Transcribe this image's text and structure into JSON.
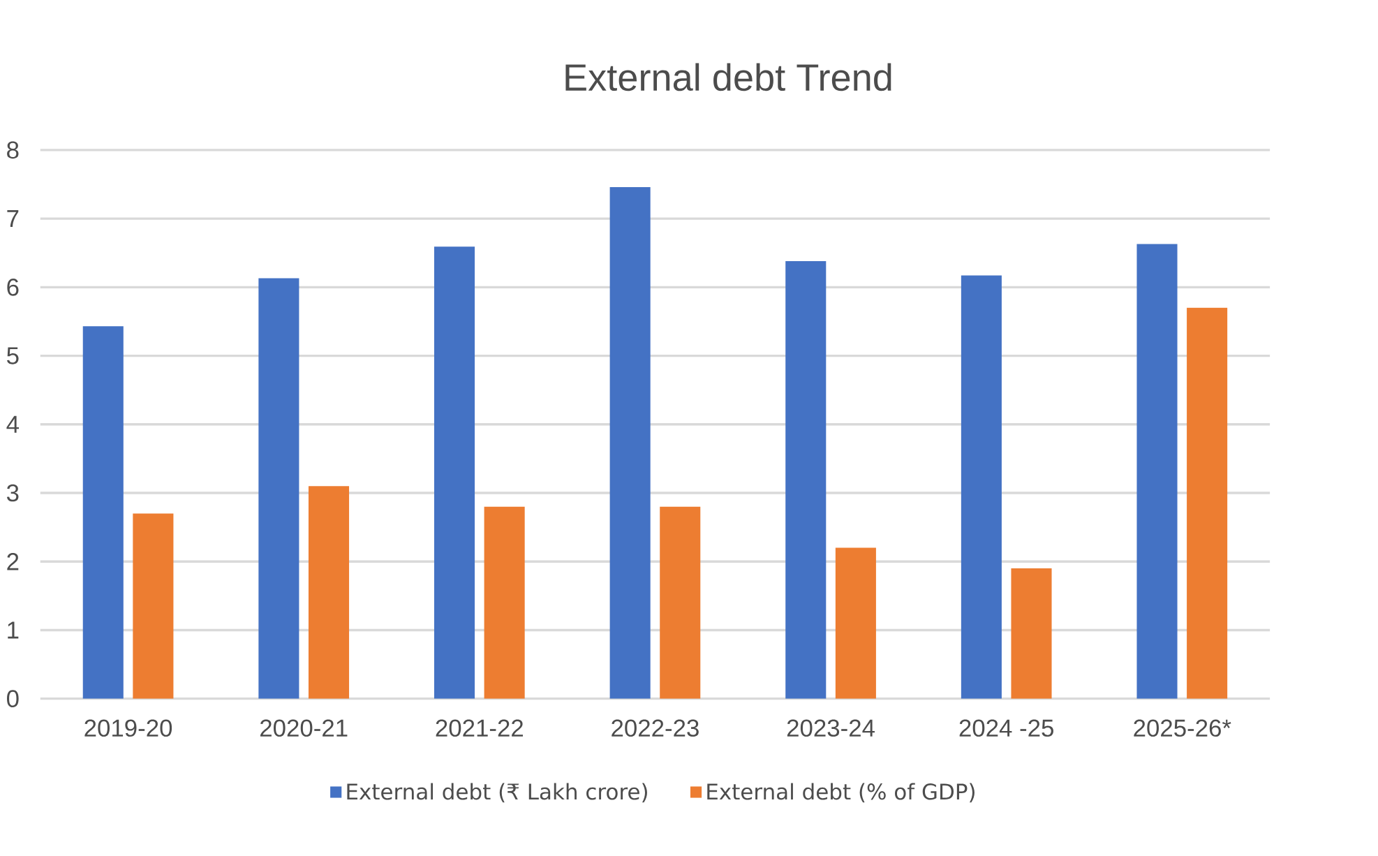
{
  "chart_data": {
    "type": "bar",
    "title": "External debt Trend",
    "categories": [
      "2019-20",
      "2020-21",
      "2021-22",
      "2022-23",
      "2023-24",
      "2024 -25",
      "2025-26*"
    ],
    "series": [
      {
        "name": "External debt (₹ Lakh crore)",
        "color": "#4472c4",
        "values": [
          5.43,
          6.13,
          6.59,
          7.46,
          6.38,
          6.17,
          6.63
        ]
      },
      {
        "name": "External debt (% of GDP)",
        "color": "#ed7d31",
        "values": [
          2.7,
          3.1,
          2.8,
          2.8,
          2.2,
          1.9,
          5.7
        ]
      }
    ],
    "ylim": [
      0,
      8
    ],
    "yticks": [
      0,
      1,
      2,
      3,
      4,
      5,
      6,
      7,
      8
    ],
    "grid": "y",
    "legend": "bottom"
  }
}
